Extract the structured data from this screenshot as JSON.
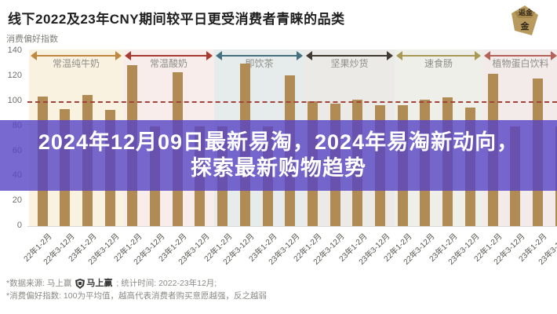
{
  "header": {
    "title": "线下2022及23年CNY期间较平日更受消费者青睐的品类",
    "corner_badge_text": "返金"
  },
  "banner": {
    "text": "2024年12月09日最新易淘，2024年易淘新动向，探索最新购物趋势",
    "bg_rgba": "rgba(86,68,196,0.8)"
  },
  "chart_data": {
    "type": "bar",
    "title": "线下2022及23年CNY期间较平日更受消费者青睐的品类",
    "ylabel": "消费偏好指数",
    "ylim": [
      0,
      145
    ],
    "y_ticks": [
      0,
      20,
      40,
      60,
      80,
      100,
      120,
      140
    ],
    "baseline": {
      "value": 100,
      "style": "dashed",
      "color": "#a3423a",
      "meaning": "平均值"
    },
    "bar_color": "#b18b54",
    "period_labels": [
      "22年1-2月",
      "22年3-12月",
      "23年1-2月",
      "23年3-12月"
    ],
    "groups": [
      {
        "name": "常温纯牛奶",
        "band_bg": "#faf2e1",
        "arrow_color": "#c0883e",
        "values": [
          104,
          94,
          105,
          93
        ]
      },
      {
        "name": "常温酸奶",
        "band_bg": "#f8edea",
        "arrow_color": "#a93a32",
        "values": [
          129,
          80,
          123,
          80
        ]
      },
      {
        "name": "即饮茶",
        "band_bg": "#e6ebeb",
        "arrow_color": "#46707f",
        "values": [
          80,
          130,
          80,
          121
        ]
      },
      {
        "name": "坚果炒货",
        "band_bg": "#eceae6",
        "arrow_color": "#403a33",
        "values": [
          100,
          98,
          101,
          97
        ]
      },
      {
        "name": "速食肠",
        "band_bg": "#edefe8",
        "arrow_color": "#a89a55",
        "values": [
          97,
          101,
          103,
          95
        ]
      },
      {
        "name": "植物蛋白饮料",
        "band_bg": "#f2ebea",
        "arrow_color": "#b4635a",
        "values": [
          122,
          80,
          118,
          80
        ]
      }
    ],
    "notes": "值为80的柱顶被页面中部紫色横幅遮挡，仅为估计值；最后一组第4根柱被右边缘裁切",
    "legend_position": "none",
    "grid": "off"
  },
  "footnotes": {
    "line1_prefix": "*数据来源: 马上赢",
    "line1_logo_text": "马上赢",
    "line1_suffix": "; 统计时间: 2022-23年12月;",
    "line2": "*消费偏好指数: 100为平均值，越高代表消费者购买意愿越强，反之越弱"
  }
}
